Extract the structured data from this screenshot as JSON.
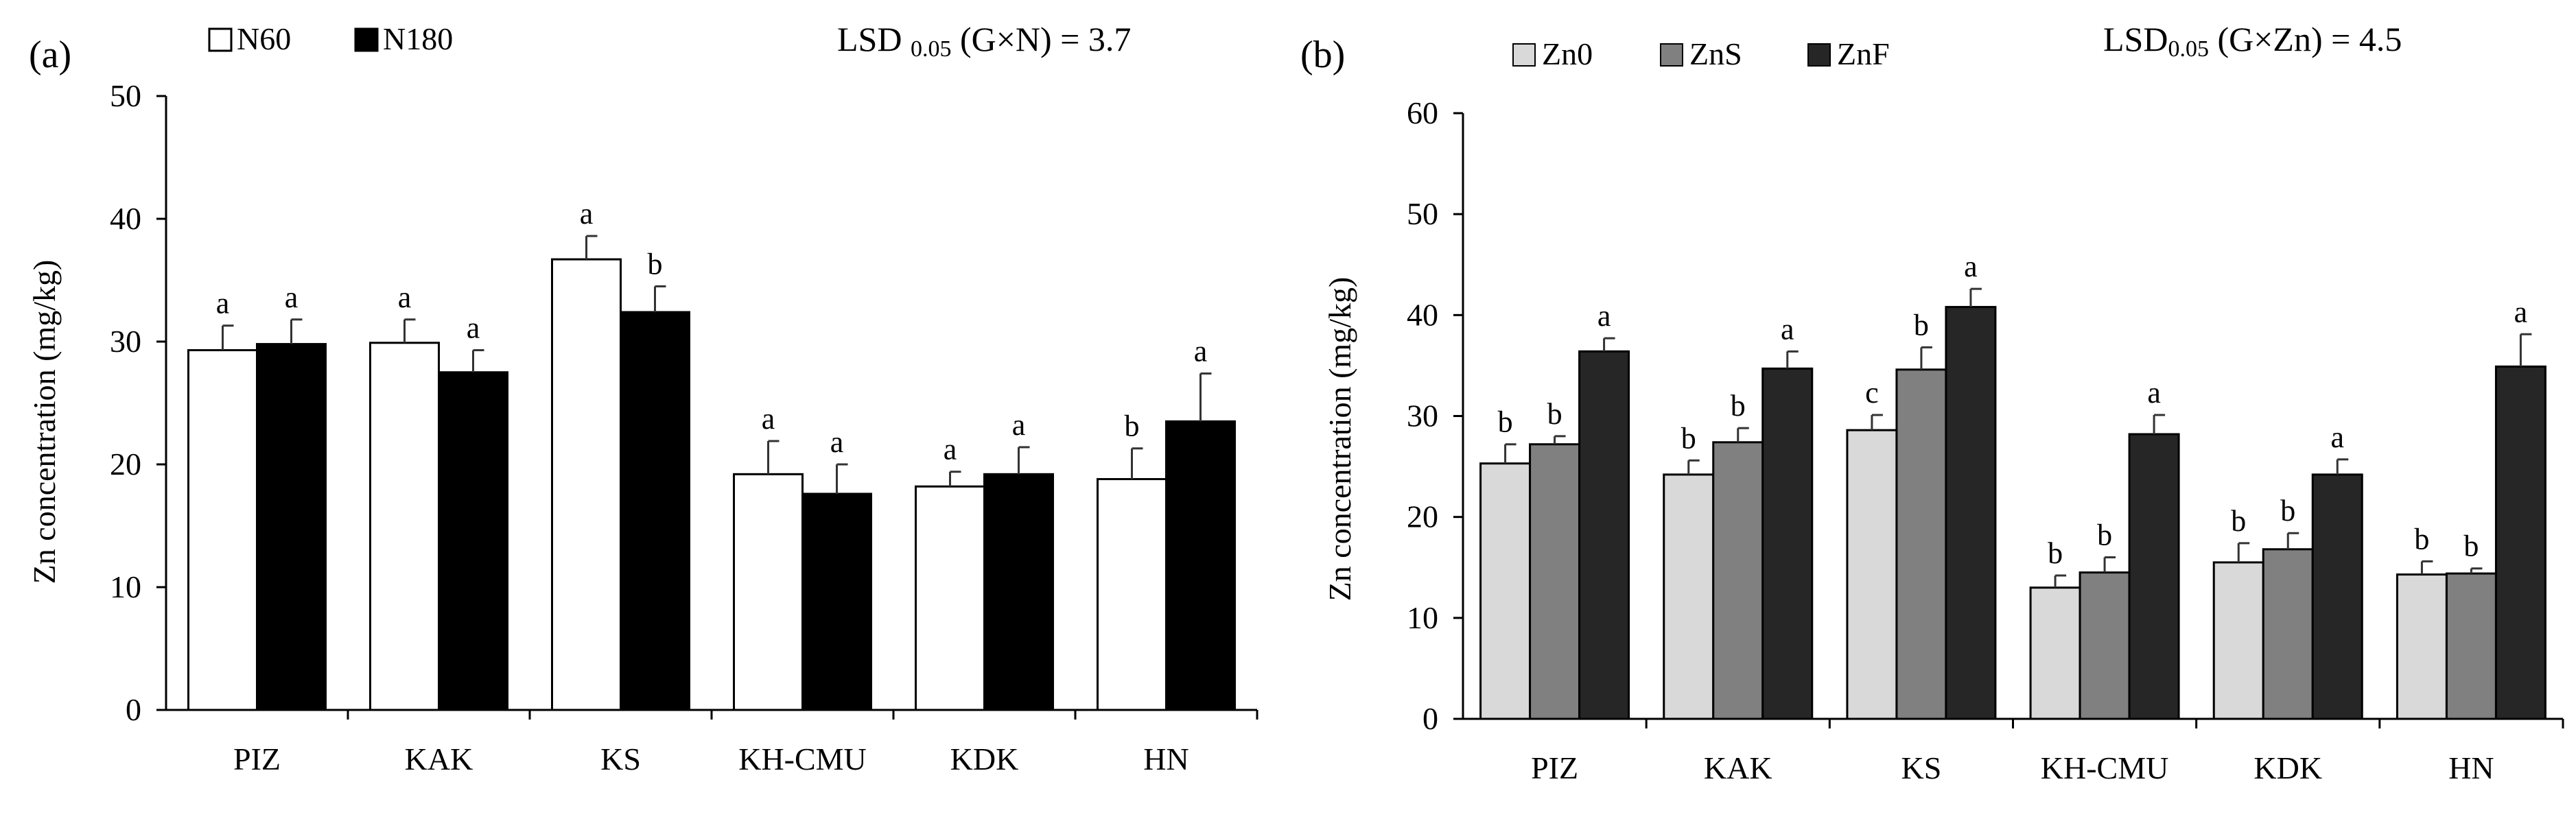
{
  "panels": [
    {
      "panel_label": "(a)",
      "lsd_main": "LSD ",
      "lsd_sub": "0.05",
      "lsd_tail": " (G×N) = 3.7",
      "chart_data": {
        "type": "bar",
        "title": "",
        "xlabel": "",
        "ylabel": "Zn concentration (mg/kg)",
        "ylim": [
          0,
          50
        ],
        "yticks": [
          0,
          10,
          20,
          30,
          40,
          50
        ],
        "categories": [
          "PIZ",
          "KAK",
          "KS",
          "KH-CMU",
          "KDK",
          "HN"
        ],
        "legend_position": "top-left",
        "series": [
          {
            "name": "N60",
            "color": "#ffffff",
            "values": [
              29.3,
              29.9,
              36.7,
              19.2,
              18.2,
              18.8
            ],
            "errors": [
              2.0,
              1.9,
              1.9,
              2.7,
              1.2,
              2.5
            ],
            "letters": [
              "a",
              "a",
              "a",
              "a",
              "a",
              "b"
            ]
          },
          {
            "name": "N180",
            "color": "#000000",
            "values": [
              29.8,
              27.5,
              32.4,
              17.6,
              19.2,
              23.5
            ],
            "errors": [
              2.0,
              1.8,
              2.1,
              2.4,
              2.2,
              3.9
            ],
            "letters": [
              "a",
              "a",
              "b",
              "a",
              "a",
              "a"
            ]
          }
        ]
      }
    },
    {
      "panel_label": "(b)",
      "lsd_main": "LSD",
      "lsd_sub": "0.05",
      "lsd_tail": " (G×Zn) = 4.5",
      "chart_data": {
        "type": "bar",
        "title": "",
        "xlabel": "",
        "ylabel": "Zn concentration (mg/kg)",
        "ylim": [
          0,
          60
        ],
        "yticks": [
          0,
          10,
          20,
          30,
          40,
          50,
          60
        ],
        "categories": [
          "PIZ",
          "KAK",
          "KS",
          "KH-CMU",
          "KDK",
          "HN"
        ],
        "legend_position": "top-left",
        "series": [
          {
            "name": "Zn0",
            "color": "#d9d9d9",
            "values": [
              25.3,
              24.2,
              28.6,
              13.0,
              15.5,
              14.3
            ],
            "errors": [
              1.9,
              1.4,
              1.5,
              1.2,
              1.9,
              1.3
            ],
            "letters": [
              "b",
              "b",
              "c",
              "b",
              "b",
              "b"
            ]
          },
          {
            "name": "ZnS",
            "color": "#808080",
            "values": [
              27.2,
              27.4,
              34.6,
              14.5,
              16.8,
              14.4
            ],
            "errors": [
              0.8,
              1.4,
              2.2,
              1.5,
              1.6,
              0.5
            ],
            "letters": [
              "b",
              "b",
              "b",
              "b",
              "b",
              "b"
            ]
          },
          {
            "name": "ZnF",
            "color": "#262626",
            "values": [
              36.4,
              34.7,
              40.8,
              28.2,
              24.2,
              34.9
            ],
            "errors": [
              1.3,
              1.7,
              1.8,
              1.9,
              1.5,
              3.2
            ],
            "letters": [
              "a",
              "a",
              "a",
              "a",
              "a",
              "a"
            ]
          }
        ]
      }
    }
  ]
}
